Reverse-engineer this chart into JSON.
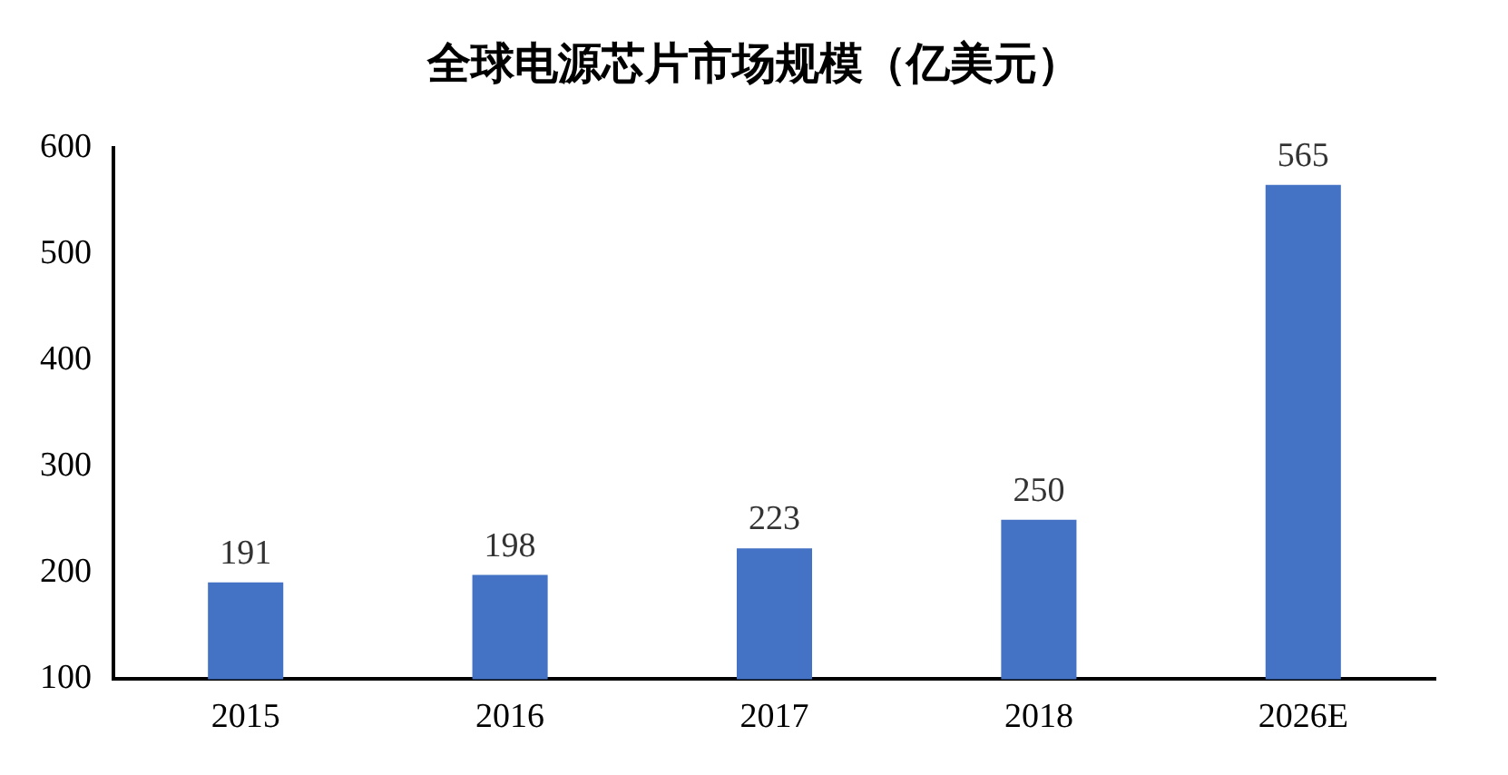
{
  "chart_data": {
    "type": "bar",
    "title": "全球电源芯片市场规模（亿美元）",
    "categories": [
      "2015",
      "2016",
      "2017",
      "2018",
      "2026E"
    ],
    "values": [
      191,
      198,
      223,
      250,
      565
    ],
    "color": "#4472c4",
    "ylim": [
      100,
      600
    ],
    "yticks": [
      100,
      200,
      300,
      400,
      500,
      600
    ],
    "grid": false,
    "data_labels": true
  }
}
